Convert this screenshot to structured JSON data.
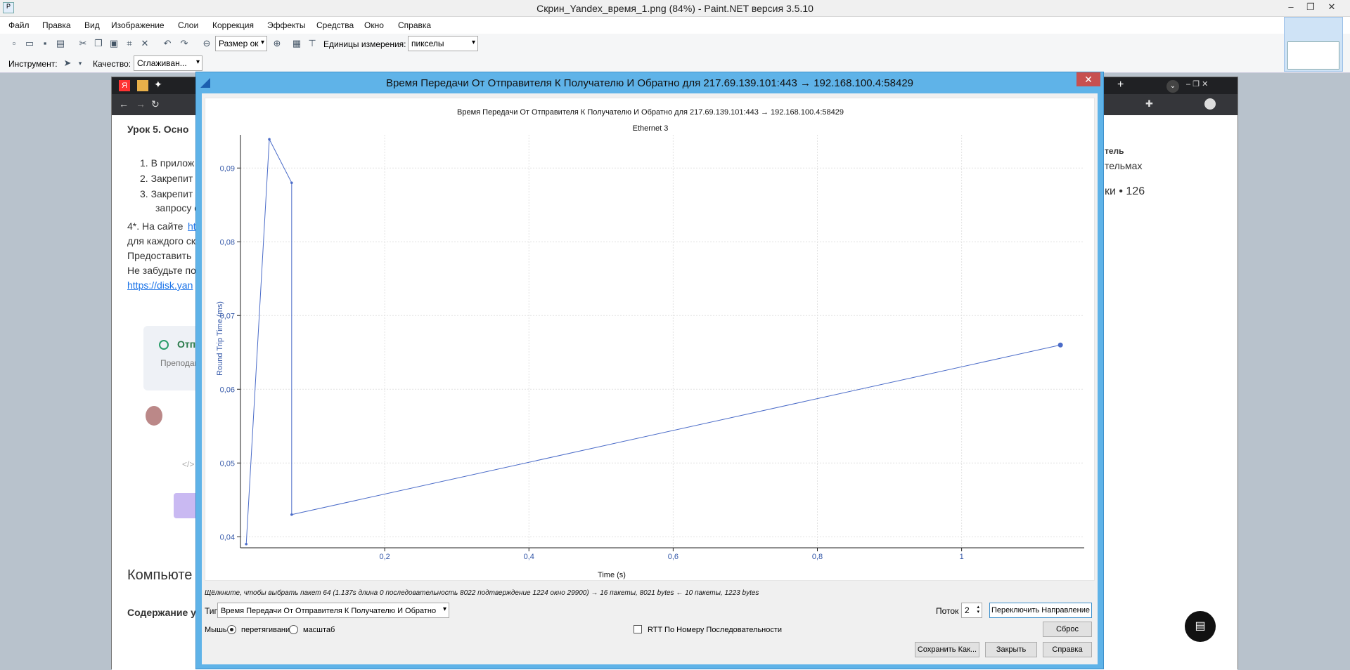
{
  "app": {
    "title": "Скрин_Yandex_время_1.png (84%) - Paint.NET версия 3.5.10",
    "menu": [
      "Файл",
      "Правка",
      "Вид",
      "Изображение",
      "Слои",
      "Коррекция",
      "Эффекты",
      "Средства",
      "Окно",
      "Справка"
    ],
    "toolbar": {
      "zoom_select": "Размер ок",
      "units_label": "Единицы измерения:",
      "units_value": "пикселы"
    },
    "toolbar2": {
      "tool_label": "Инструмент:",
      "quality_label": "Качество:",
      "quality_value": "Сглаживан..."
    }
  },
  "browser_page": {
    "lesson_title": "Урок 5. Осно",
    "list": [
      "1. В прилож",
      "2. Закрепит",
      "3. Закрепит",
      "запросу с"
    ],
    "para1": "4*. На сайте",
    "para1_link": "htt",
    "para2": "для каждого ск",
    "para3": "Предоставить",
    "para4": "Не забудьте по",
    "link": "https://disk.yan",
    "sent_label": "Отп",
    "teacher_label": "Преподава",
    "heading": "Компьюте",
    "contents": "Содержание у",
    "right_col1": "тель",
    "right_col2": "тельмах",
    "right_count": "ки • 126"
  },
  "dialog": {
    "title": "Время Передачи От Отправителя К Получателю И Обратно для 217.69.139.101:443 → 192.168.100.4:58429",
    "chart_title": "Время Передачи От Отправителя К Получателю И Обратно для 217.69.139.101:443 → 192.168.100.4:58429",
    "chart_subtitle": "Ethernet 3",
    "status_text": "Щёлкните, чтобы выбрать пакет 64 (1.137s длина 0 последовательность 8022 подтверждение 1224 окно 29900) → 16 пакеты, 8021 bytes ← 10 пакеты, 1223 bytes",
    "type_label": "Тип",
    "type_value": "Время Передачи От Отправителя К Получателю И Обратно",
    "stream_label": "Поток",
    "stream_value": "2",
    "switch_direction": "Переключить Направление",
    "mouse_label": "Мышь",
    "drag_label": "перетягивание",
    "zoom_label": "масштаб",
    "rtt_seq_label": "RTT По Номеру Последовательности",
    "reset_button": "Сброс",
    "save_as_button": "Сохранить Как...",
    "close_button": "Закрыть",
    "help_button": "Справка"
  },
  "chart_data": {
    "type": "line",
    "title": "Время Передачи От Отправителя К Получателю И Обратно для 217.69.139.101:443 → 192.168.100.4:58429",
    "subtitle": "Ethernet 3",
    "xlabel": "Time (s)",
    "ylabel": "Round Trip Time (ms)",
    "xlim": [
      0.0,
      1.17
    ],
    "ylim": [
      0.0385,
      0.0945
    ],
    "xticks": [
      "0,2",
      "0,4",
      "0,6",
      "0,8",
      "1"
    ],
    "xtick_values": [
      0.2,
      0.4,
      0.6,
      0.8,
      1.0
    ],
    "yticks": [
      "0,04",
      "0,05",
      "0,06",
      "0,07",
      "0,08",
      "0,09"
    ],
    "ytick_values": [
      0.04,
      0.05,
      0.06,
      0.07,
      0.08,
      0.09
    ],
    "grid": true,
    "series": [
      {
        "x": [
          0.008,
          0.04,
          0.071,
          0.071,
          1.137
        ],
        "y": [
          0.039,
          0.0939,
          0.088,
          0.043,
          0.066
        ],
        "color": "#4a6bc8"
      }
    ]
  },
  "colors": {
    "dialog_frame": "#5fb3e8",
    "close_btn": "#c75050",
    "series": "#4a6bc8"
  }
}
